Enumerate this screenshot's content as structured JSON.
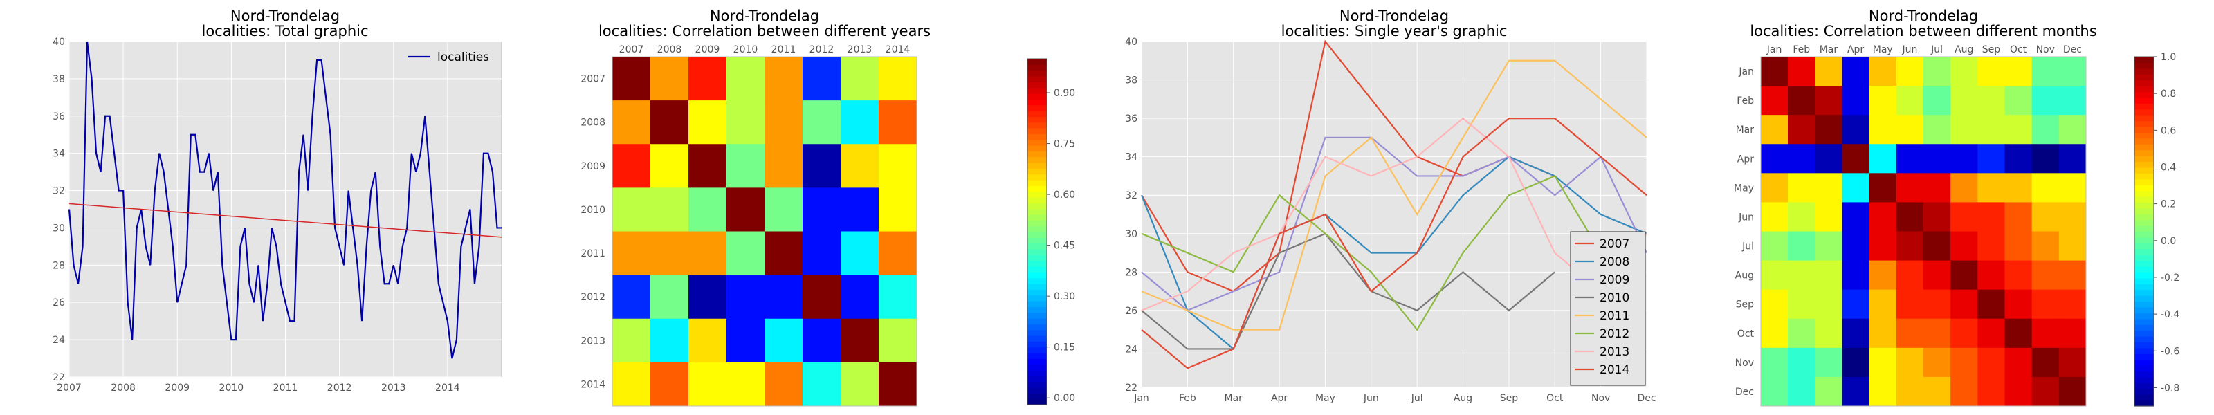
{
  "chart_data": [
    {
      "type": "line",
      "title": "Nord-Trondelag\nlocalities: Total graphic",
      "xlabel": "",
      "ylabel": "",
      "xlim": [
        2007,
        2015
      ],
      "ylim": [
        22,
        40
      ],
      "x_ticks": [
        "2007",
        "2008",
        "2009",
        "2010",
        "2011",
        "2012",
        "2013",
        "2014"
      ],
      "y_ticks": [
        22,
        24,
        26,
        28,
        30,
        32,
        34,
        36,
        38,
        40
      ],
      "legend": {
        "position": "top-right",
        "entries": [
          "localities"
        ]
      },
      "series": [
        {
          "name": "localities",
          "color": "#0000aa",
          "x_start": 2007,
          "step_months": 1,
          "values": [
            31,
            28,
            27,
            29,
            40,
            38,
            34,
            33,
            36,
            36,
            34,
            32,
            32,
            26,
            24,
            30,
            31,
            29,
            28,
            32,
            34,
            33,
            31,
            29,
            26,
            27,
            28,
            35,
            35,
            33,
            33,
            34,
            32,
            33,
            28,
            26,
            24,
            24,
            29,
            30,
            27,
            26,
            28,
            25,
            27,
            30,
            29,
            27,
            26,
            25,
            25,
            33,
            35,
            32,
            36,
            39,
            39,
            37,
            35,
            30,
            29,
            28,
            32,
            30,
            28,
            25,
            29,
            32,
            33,
            29,
            27,
            27,
            28,
            27,
            29,
            30,
            34,
            33,
            34,
            36,
            33,
            30,
            27,
            26,
            25,
            23,
            24,
            29,
            30,
            31,
            27,
            29,
            34,
            34,
            33,
            30,
            30
          ]
        },
        {
          "name": "",
          "color": "#d62728",
          "type": "trend",
          "x": [
            2007,
            2015
          ],
          "values": [
            31.3,
            29.5
          ]
        }
      ],
      "grid": true
    },
    {
      "type": "heatmap",
      "title": "Nord-Trondelag\nlocalities: Correlation between different years",
      "x_labels": [
        "2007",
        "2008",
        "2009",
        "2010",
        "2011",
        "2012",
        "2013",
        "2014"
      ],
      "y_labels": [
        "2007",
        "2008",
        "2009",
        "2010",
        "2011",
        "2012",
        "2013",
        "2014"
      ],
      "colorbar_ticks": [
        "0.00",
        "0.15",
        "0.30",
        "0.45",
        "0.60",
        "0.75",
        "0.90"
      ],
      "vmin": -0.02,
      "vmax": 1.0,
      "matrix": [
        [
          1.0,
          0.72,
          0.85,
          0.55,
          0.72,
          0.15,
          0.55,
          0.63
        ],
        [
          0.72,
          1.0,
          0.62,
          0.55,
          0.72,
          0.48,
          0.35,
          0.78
        ],
        [
          0.85,
          0.62,
          1.0,
          0.48,
          0.72,
          0.02,
          0.65,
          0.62
        ],
        [
          0.55,
          0.55,
          0.48,
          1.0,
          0.48,
          0.12,
          0.12,
          0.62
        ],
        [
          0.72,
          0.72,
          0.72,
          0.48,
          1.0,
          0.12,
          0.35,
          0.75
        ],
        [
          0.15,
          0.48,
          0.02,
          0.12,
          0.12,
          1.0,
          0.12,
          0.38
        ],
        [
          0.55,
          0.35,
          0.65,
          0.12,
          0.35,
          0.12,
          1.0,
          0.55
        ],
        [
          0.63,
          0.78,
          0.62,
          0.62,
          0.75,
          0.38,
          0.55,
          1.0
        ]
      ]
    },
    {
      "type": "line",
      "title": "Nord-Trondelag\nlocalities: Single year's graphic",
      "x_labels": [
        "Jan",
        "Feb",
        "Mar",
        "Apr",
        "May",
        "Jun",
        "Jul",
        "Aug",
        "Sep",
        "Oct",
        "Nov",
        "Dec"
      ],
      "y_ticks": [
        22,
        24,
        26,
        28,
        30,
        32,
        34,
        36,
        38,
        40
      ],
      "ylim": [
        22,
        40
      ],
      "legend": {
        "position": "bottom-right",
        "entries": [
          "2007",
          "2008",
          "2009",
          "2010",
          "2011",
          "2012",
          "2013",
          "2014"
        ]
      },
      "series": [
        {
          "name": "2007",
          "color": "#e24a33",
          "values": [
            32,
            28,
            27,
            29,
            40,
            37,
            34,
            33,
            34,
            33,
            null,
            null
          ]
        },
        {
          "name": "2008",
          "color": "#348abd",
          "values": [
            32,
            26,
            24,
            30,
            31,
            29,
            29,
            32,
            34,
            33,
            31,
            30
          ]
        },
        {
          "name": "2009",
          "color": "#988ed5",
          "values": [
            28,
            26,
            27,
            28,
            35,
            35,
            33,
            33,
            34,
            32,
            34,
            29
          ]
        },
        {
          "name": "2010",
          "color": "#777777",
          "values": [
            26,
            24,
            24,
            29,
            30,
            27,
            26,
            28,
            26,
            28,
            null,
            null
          ]
        },
        {
          "name": "2011",
          "color": "#fbc15e",
          "values": [
            27,
            26,
            25,
            25,
            33,
            35,
            31,
            35,
            39,
            39,
            37,
            35
          ]
        },
        {
          "name": "2012",
          "color": "#8eba42",
          "values": [
            30,
            29,
            28,
            32,
            30,
            28,
            25,
            29,
            32,
            33,
            29,
            null
          ]
        },
        {
          "name": "2013",
          "color": "#ffb5b8",
          "values": [
            26,
            27,
            29,
            30,
            34,
            33,
            34,
            36,
            34,
            29,
            27,
            30
          ]
        },
        {
          "name": "2014",
          "color": "#e24a33",
          "values": [
            25,
            23,
            24,
            30,
            31,
            27,
            29,
            34,
            36,
            36,
            34,
            32
          ]
        }
      ],
      "grid": true
    },
    {
      "type": "heatmap",
      "title": "Nord-Trondelag\nlocalities: Correlation between different months",
      "x_labels": [
        "Jan",
        "Feb",
        "Mar",
        "Apr",
        "May",
        "Jun",
        "Jul",
        "Aug",
        "Sep",
        "Oct",
        "Nov",
        "Dec"
      ],
      "y_labels": [
        "Jan",
        "Feb",
        "Mar",
        "Apr",
        "May",
        "Jun",
        "Jul",
        "Aug",
        "Sep",
        "Oct",
        "Nov",
        "Dec"
      ],
      "colorbar_ticks": [
        "-0.8",
        "-0.6",
        "-0.4",
        "-0.2",
        "0.0",
        "0.2",
        "0.4",
        "0.6",
        "0.8",
        "1.0"
      ],
      "vmin": -0.9,
      "vmax": 1.0,
      "matrix": [
        [
          1.0,
          0.8,
          0.4,
          -0.7,
          0.4,
          0.3,
          0.1,
          0.2,
          0.3,
          0.3,
          0.0,
          0.0
        ],
        [
          0.8,
          1.0,
          0.9,
          -0.7,
          0.3,
          0.2,
          0.0,
          0.2,
          0.2,
          0.1,
          -0.1,
          -0.1
        ],
        [
          0.4,
          0.9,
          1.0,
          -0.8,
          0.3,
          0.3,
          0.1,
          0.2,
          0.2,
          0.2,
          0.0,
          0.1
        ],
        [
          -0.7,
          -0.7,
          -0.8,
          1.0,
          -0.2,
          -0.7,
          -0.7,
          -0.7,
          -0.6,
          -0.8,
          -0.9,
          -0.8
        ],
        [
          0.4,
          0.3,
          0.3,
          -0.2,
          1.0,
          0.8,
          0.8,
          0.5,
          0.4,
          0.4,
          0.3,
          0.3
        ],
        [
          0.3,
          0.2,
          0.3,
          -0.7,
          0.8,
          1.0,
          0.9,
          0.7,
          0.7,
          0.6,
          0.4,
          0.4
        ],
        [
          0.1,
          0.0,
          0.1,
          -0.7,
          0.8,
          0.9,
          1.0,
          0.8,
          0.7,
          0.6,
          0.5,
          0.4
        ],
        [
          0.2,
          0.2,
          0.2,
          -0.7,
          0.5,
          0.7,
          0.8,
          1.0,
          0.8,
          0.7,
          0.6,
          0.6
        ],
        [
          0.3,
          0.2,
          0.2,
          -0.6,
          0.4,
          0.7,
          0.7,
          0.8,
          1.0,
          0.8,
          0.7,
          0.7
        ],
        [
          0.3,
          0.1,
          0.2,
          -0.8,
          0.4,
          0.6,
          0.6,
          0.7,
          0.8,
          1.0,
          0.8,
          0.8
        ],
        [
          0.0,
          -0.1,
          0.0,
          -0.9,
          0.3,
          0.4,
          0.5,
          0.6,
          0.7,
          0.8,
          1.0,
          0.9
        ],
        [
          0.0,
          -0.1,
          0.1,
          -0.8,
          0.3,
          0.4,
          0.4,
          0.6,
          0.7,
          0.8,
          0.9,
          1.0
        ]
      ]
    }
  ]
}
